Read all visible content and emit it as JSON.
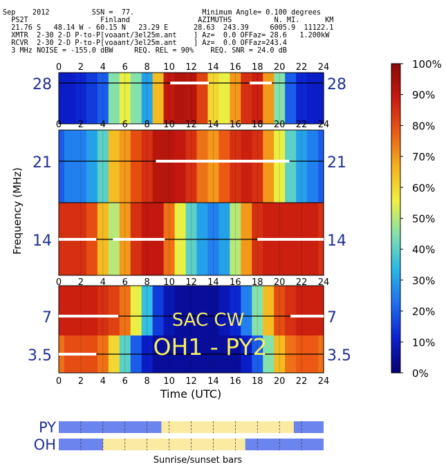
{
  "header": {
    "lines": [
      "Sep    2012          SSN =  77.                Minimum Angle= 0.100 degrees",
      "  PS2T                 Finland                AZIMUTHS          N. MI.      KM",
      "  21.76 S   48.14 W - 60.15 N   23.29 E      28.63  243.39     6005.9  11122.1",
      "  XMTR  2-30 2-D P-to-P[voaant/3el25m.ant    ] Az=  0.0 OFFaz= 28.6   1.200kW",
      "  RCVR  2-30 2-D P-to-P[voaant/3el25m.ant    ] Az=  0.0 OFFaz=243.4",
      "  3 MHz NOISE = -155.0 dBW     REQ. REL = 90%    REQ. SNR = 24.0 dB"
    ]
  },
  "chart_data": {
    "type": "heatmap",
    "xlabel": "Time (UTC)",
    "ylabel": "Frequency (MHz)",
    "xlim": [
      0,
      24
    ],
    "x_ticks": [
      "0",
      "2",
      "4",
      "6",
      "8",
      "10",
      "12",
      "14",
      "16",
      "18",
      "20",
      "22",
      "24"
    ],
    "annotation_line1": "SAC  CW",
    "annotation_line2": "OH1 - PY2",
    "colorbar": {
      "ticks": [
        "100%",
        "90%",
        "80%",
        "70%",
        "60%",
        "50%",
        "40%",
        "30%",
        "20%",
        "10%",
        "0%"
      ],
      "stops": [
        "#08006e",
        "#0a20d0",
        "#1f6cf0",
        "#27b8e8",
        "#7fe0b0",
        "#f0f040",
        "#f5b21e",
        "#ec5a14",
        "#c81a10",
        "#8a0a05"
      ]
    },
    "panels": [
      {
        "band": "28",
        "reliability_by_hour": [
          0.1,
          0.1,
          0.12,
          0.15,
          0.2,
          0.45,
          0.55,
          0.45,
          0.3,
          0.65,
          0.9,
          0.93,
          0.92,
          0.82,
          0.6,
          0.55,
          0.7,
          0.85,
          0.88,
          0.7,
          0.45,
          0.2,
          0.12,
          0.1,
          0.1
        ],
        "white_bars": [
          [
            10.1,
            13.6
          ],
          [
            17.3,
            19.3
          ]
        ]
      },
      {
        "band": "21",
        "reliability_by_hour": [
          0.2,
          0.25,
          0.25,
          0.3,
          0.4,
          0.65,
          0.7,
          0.8,
          0.85,
          0.92,
          0.92,
          0.9,
          0.85,
          0.75,
          0.7,
          0.78,
          0.85,
          0.88,
          0.85,
          0.7,
          0.55,
          0.4,
          0.3,
          0.25,
          0.2
        ],
        "white_bars": [
          [
            8.8,
            20.9
          ]
        ]
      },
      {
        "band": "14",
        "reliability_by_hour": [
          0.85,
          0.85,
          0.85,
          0.8,
          0.65,
          0.5,
          0.7,
          0.85,
          0.9,
          0.9,
          0.75,
          0.55,
          0.4,
          0.3,
          0.25,
          0.3,
          0.5,
          0.7,
          0.85,
          0.88,
          0.88,
          0.88,
          0.88,
          0.88,
          0.85
        ],
        "white_bars": [
          [
            0.0,
            3.4
          ],
          [
            4.9,
            9.6
          ],
          [
            18.0,
            24.0
          ]
        ]
      },
      {
        "band": "7",
        "reliability_by_hour": [
          0.88,
          0.88,
          0.88,
          0.88,
          0.85,
          0.82,
          0.75,
          0.55,
          0.35,
          0.15,
          0.08,
          0.05,
          0.05,
          0.05,
          0.05,
          0.08,
          0.12,
          0.25,
          0.45,
          0.65,
          0.8,
          0.85,
          0.88,
          0.88,
          0.88
        ],
        "white_bars": [
          [
            0.0,
            5.4
          ],
          [
            21.0,
            24.0
          ]
        ]
      },
      {
        "band": "3.5",
        "reliability_by_hour": [
          0.75,
          0.8,
          0.8,
          0.8,
          0.75,
          0.6,
          0.4,
          0.2,
          0.1,
          0.05,
          0.05,
          0.05,
          0.05,
          0.05,
          0.05,
          0.05,
          0.05,
          0.1,
          0.2,
          0.45,
          0.65,
          0.75,
          0.78,
          0.78,
          0.75
        ],
        "white_bars": [
          [
            0.0,
            3.4
          ]
        ]
      }
    ]
  },
  "sun_bars": {
    "caption": "Sunrise/sunset bars",
    "night_color": "#6c84ee",
    "day_color": "#fbeaa2",
    "rows": [
      {
        "label": "PY",
        "daylight": [
          9.3,
          21.3
        ]
      },
      {
        "label": "OH",
        "daylight": [
          4.0,
          16.9
        ]
      }
    ]
  }
}
